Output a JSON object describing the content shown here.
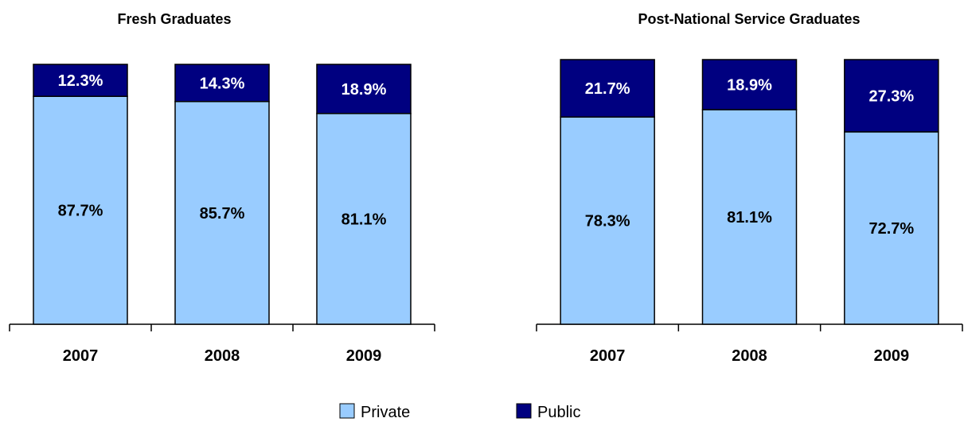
{
  "chart_data": [
    {
      "type": "bar",
      "stacked": true,
      "percent": true,
      "title": "Fresh Graduates",
      "categories": [
        "2007",
        "2008",
        "2009"
      ],
      "series": [
        {
          "name": "Private",
          "values": [
            87.7,
            85.7,
            81.1
          ],
          "labels": [
            "87.7%",
            "85.7%",
            "81.1%"
          ]
        },
        {
          "name": "Public",
          "values": [
            12.3,
            14.3,
            18.9
          ],
          "labels": [
            "12.3%",
            "14.3%",
            "18.9%"
          ]
        }
      ],
      "ylim": [
        0,
        100
      ]
    },
    {
      "type": "bar",
      "stacked": true,
      "percent": true,
      "title": "Post-National Service Graduates",
      "categories": [
        "2007",
        "2008",
        "2009"
      ],
      "series": [
        {
          "name": "Private",
          "values": [
            78.3,
            81.1,
            72.7
          ],
          "labels": [
            "78.3%",
            "81.1%",
            "72.7%"
          ]
        },
        {
          "name": "Public",
          "values": [
            21.7,
            18.9,
            27.3
          ],
          "labels": [
            "21.7%",
            "18.9%",
            "27.3%"
          ]
        }
      ],
      "ylim": [
        0,
        100
      ]
    }
  ],
  "legend": {
    "placement": "bottom-center",
    "items": [
      {
        "label": "Private",
        "color": "#99ccff"
      },
      {
        "label": "Public",
        "color": "#000080"
      }
    ]
  },
  "colors": {
    "private": "#99ccff",
    "public": "#000080",
    "private_label": "#000000",
    "public_label": "#ffffff"
  }
}
